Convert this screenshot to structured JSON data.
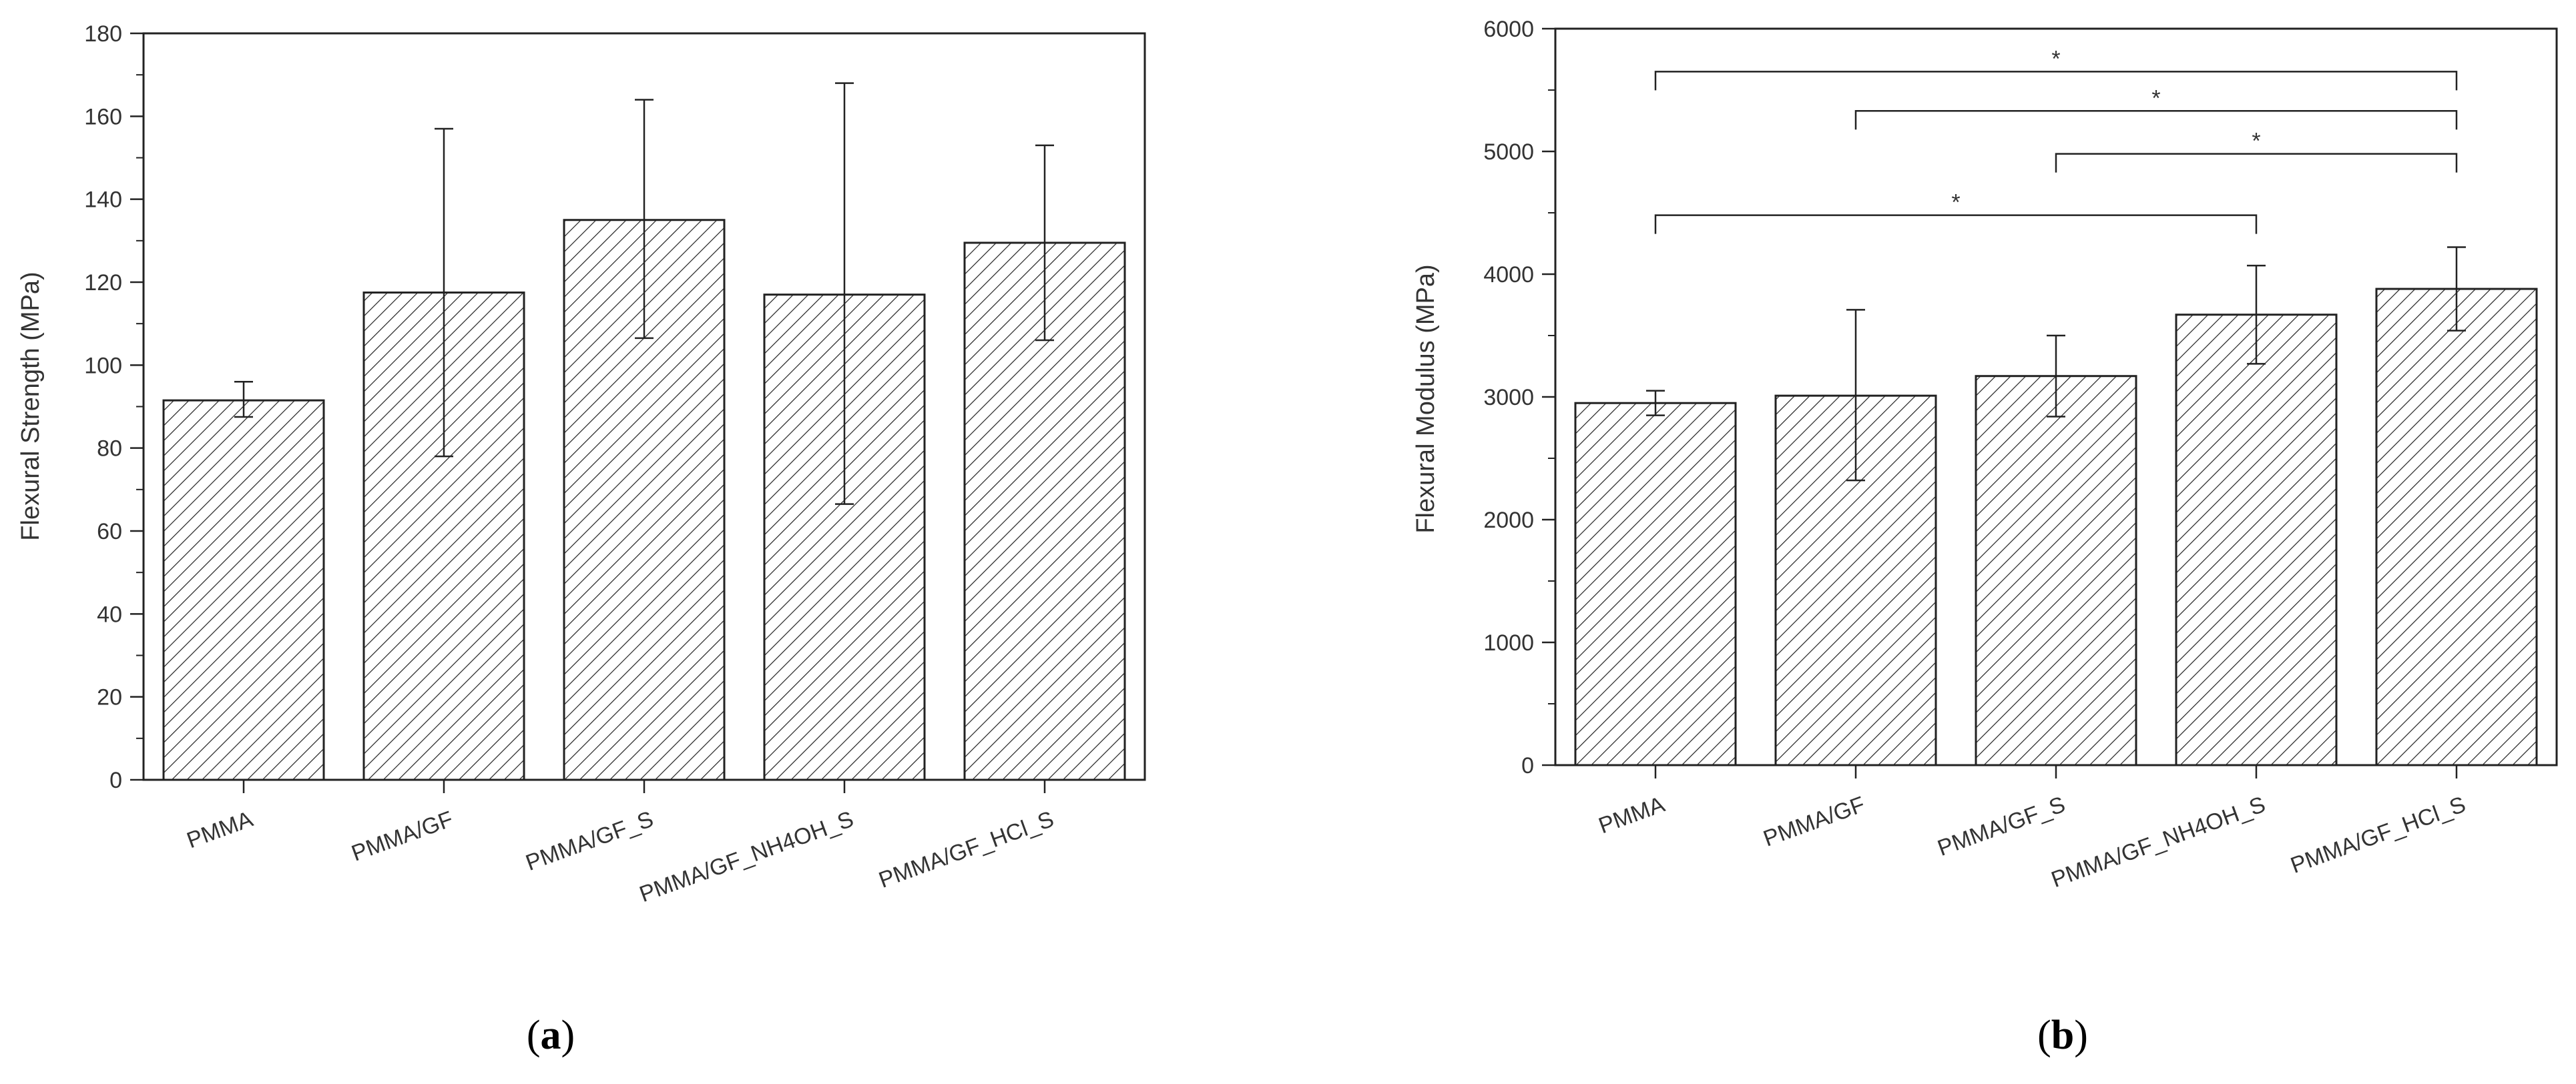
{
  "panels": [
    {
      "label_open": "(",
      "label_letter": "a",
      "label_close": ")",
      "chart_data": {
        "type": "bar",
        "categories": [
          "PMMA",
          "PMMA/GF",
          "PMMA/GF_S",
          "PMMA/GF_NH4OH_S",
          "PMMA/GF_HCl_S"
        ],
        "values": [
          91.5,
          117.5,
          135,
          117,
          129.5
        ],
        "error_low": [
          87.5,
          78,
          106.5,
          66.5,
          106
        ],
        "error_high": [
          96,
          157,
          164,
          168,
          153
        ],
        "ylabel": "Flexural Strength (MPa)",
        "xlabel": "",
        "ylim": [
          0,
          180
        ],
        "yticks": [
          0,
          20,
          40,
          60,
          80,
          100,
          120,
          140,
          160,
          180
        ],
        "bar_fill": "diagonal hatch",
        "significance": []
      }
    },
    {
      "label_open": "(",
      "label_letter": "b",
      "label_close": ")",
      "chart_data": {
        "type": "bar",
        "categories": [
          "PMMA",
          "PMMA/GF",
          "PMMA/GF_S",
          "PMMA/GF_NH4OH_S",
          "PMMA/GF_HCl_S"
        ],
        "values": [
          2950,
          3010,
          3170,
          3670,
          3880
        ],
        "error_low": [
          2850,
          2320,
          2840,
          3270,
          3540
        ],
        "error_high": [
          3050,
          3710,
          3500,
          4070,
          4220
        ],
        "ylabel": "Flexural Modulus (MPa)",
        "xlabel": "",
        "ylim": [
          0,
          6000
        ],
        "yticks": [
          0,
          1000,
          2000,
          3000,
          4000,
          5000,
          6000
        ],
        "bar_fill": "diagonal hatch",
        "significance": [
          {
            "from": 0,
            "to": 4,
            "level": 5650,
            "mark": "*"
          },
          {
            "from": 1,
            "to": 4,
            "level": 5330,
            "mark": "*"
          },
          {
            "from": 2,
            "to": 4,
            "level": 4980,
            "mark": "*"
          },
          {
            "from": 0,
            "to": 3,
            "level": 4480,
            "mark": "*"
          }
        ]
      }
    }
  ]
}
